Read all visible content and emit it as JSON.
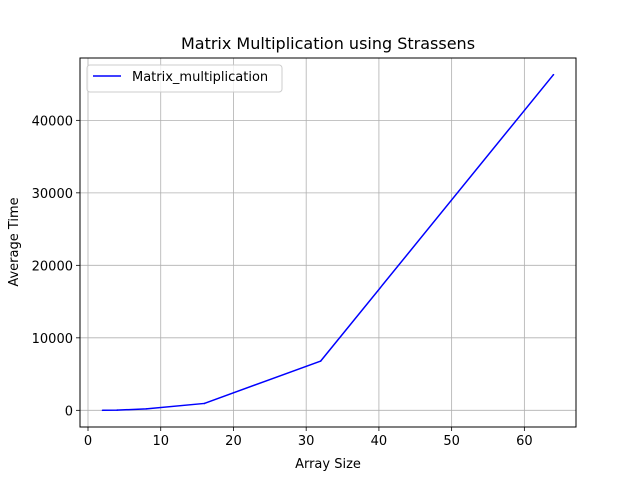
{
  "chart_data": {
    "type": "line",
    "title": "Matrix Multiplication using Strassens",
    "xlabel": "Array Size",
    "ylabel": "Average Time",
    "xlim": [
      -1.1,
      67.1
    ],
    "ylim": [
      -2300,
      48600
    ],
    "xticks": [
      0,
      10,
      20,
      30,
      40,
      50,
      60
    ],
    "yticks": [
      0,
      10000,
      20000,
      30000,
      40000
    ],
    "grid": true,
    "legend_position": "upper-left",
    "series": [
      {
        "name": "Matrix_multiplication",
        "color": "#0000ff",
        "x": [
          2,
          4,
          8,
          16,
          32,
          64
        ],
        "y": [
          5,
          30,
          200,
          950,
          6800,
          46300
        ]
      }
    ]
  }
}
